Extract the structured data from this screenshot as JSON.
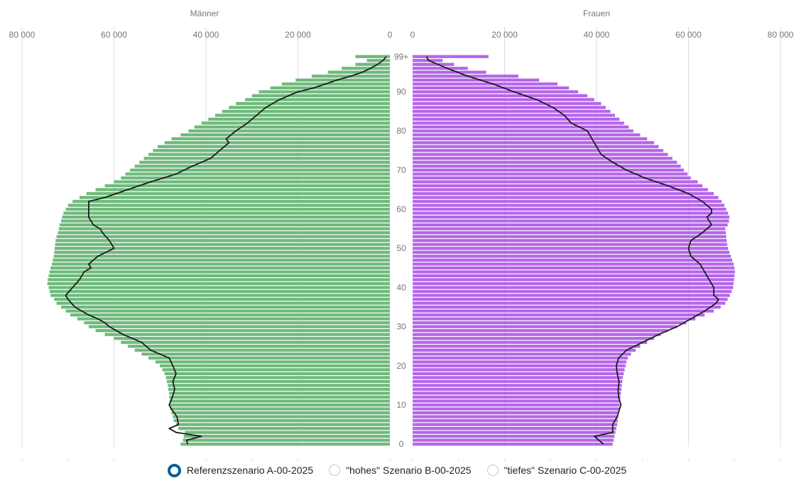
{
  "chart_data": {
    "type": "bar",
    "subtype": "population-pyramid",
    "panels": {
      "left": {
        "title": "Männer",
        "color": "#6fba7c"
      },
      "right": {
        "title": "Frauen",
        "color": "#b566ea"
      }
    },
    "x_ticks": [
      0,
      20000,
      40000,
      60000,
      80000
    ],
    "x_tick_labels": [
      "0",
      "20 000",
      "40 000",
      "60 000",
      "80 000"
    ],
    "x_range": [
      0,
      80000
    ],
    "y_ticks": [
      0,
      10,
      20,
      30,
      40,
      50,
      60,
      70,
      80,
      90
    ],
    "y_top_label": "99+",
    "y_range": [
      0,
      99
    ],
    "grid": true,
    "ages_note": "ages 0..99, 99 = 99+",
    "series": [
      {
        "name": "Männer",
        "values": [
          45500,
          45000,
          44800,
          44600,
          46000,
          46500,
          47000,
          47200,
          47500,
          47800,
          47800,
          47900,
          48000,
          48000,
          48200,
          48300,
          48500,
          48700,
          49000,
          49500,
          50000,
          51000,
          52500,
          54000,
          55500,
          57000,
          58500,
          60000,
          62000,
          64000,
          65500,
          66500,
          68000,
          69500,
          70500,
          71500,
          72500,
          73000,
          73800,
          74000,
          74200,
          74500,
          74400,
          74200,
          74000,
          73800,
          73500,
          73300,
          73100,
          73000,
          72900,
          72800,
          72700,
          72500,
          72200,
          72000,
          71800,
          71500,
          71300,
          71000,
          70500,
          70000,
          69000,
          67500,
          66000,
          64000,
          62000,
          60000,
          58500,
          57500,
          56500,
          55500,
          54500,
          53500,
          52500,
          51500,
          50500,
          49000,
          47500,
          45500,
          43800,
          42500,
          41000,
          39500,
          38000,
          36500,
          35000,
          33500,
          31500,
          30000,
          28500,
          26000,
          23500,
          20500,
          17000,
          13500,
          10500,
          7500,
          5000,
          7500
        ]
      },
      {
        "name": "Frauen",
        "values": [
          43500,
          43700,
          43900,
          44100,
          44300,
          44500,
          44600,
          44700,
          44800,
          44900,
          45000,
          45100,
          45200,
          45300,
          45400,
          45500,
          45600,
          45700,
          45900,
          46100,
          46300,
          46500,
          46800,
          47500,
          48500,
          49500,
          51000,
          52500,
          54000,
          55500,
          57500,
          59500,
          61500,
          63500,
          65500,
          67000,
          68000,
          68500,
          69000,
          69400,
          69700,
          69800,
          69900,
          70000,
          70100,
          70000,
          69800,
          69500,
          69200,
          68900,
          68600,
          68400,
          68300,
          68200,
          68100,
          68000,
          68500,
          68800,
          68900,
          68600,
          68200,
          67800,
          67200,
          66500,
          65500,
          64200,
          63000,
          62000,
          60500,
          59800,
          59000,
          58300,
          57500,
          56500,
          55500,
          54500,
          53500,
          52500,
          51000,
          49500,
          48000,
          47000,
          46000,
          45000,
          44000,
          43000,
          42000,
          41000,
          39500,
          38000,
          36000,
          34000,
          31500,
          27500,
          23000,
          16000,
          12000,
          9000,
          6500,
          16500
        ]
      },
      {
        "name": "Männer (Linie)",
        "points": [
          [
            0,
            44000
          ],
          [
            1,
            44200
          ],
          [
            2,
            41000
          ],
          [
            3,
            46500
          ],
          [
            4,
            48000
          ],
          [
            5,
            46000
          ],
          [
            7,
            46300
          ],
          [
            9,
            47500
          ],
          [
            10,
            48000
          ],
          [
            12,
            47300
          ],
          [
            14,
            46800
          ],
          [
            16,
            47200
          ],
          [
            18,
            46500
          ],
          [
            20,
            47200
          ],
          [
            22,
            48000
          ],
          [
            24,
            52000
          ],
          [
            26,
            54000
          ],
          [
            28,
            58000
          ],
          [
            30,
            61000
          ],
          [
            31,
            62000
          ],
          [
            32,
            63500
          ],
          [
            33,
            65500
          ],
          [
            34,
            67000
          ],
          [
            35,
            68500
          ],
          [
            37,
            70000
          ],
          [
            38,
            70500
          ],
          [
            40,
            69000
          ],
          [
            42,
            67500
          ],
          [
            44,
            66500
          ],
          [
            45,
            65000
          ],
          [
            46,
            65500
          ],
          [
            48,
            63500
          ],
          [
            50,
            60000
          ],
          [
            52,
            61000
          ],
          [
            54,
            62500
          ],
          [
            55,
            63000
          ],
          [
            56,
            64500
          ],
          [
            58,
            65500
          ],
          [
            60,
            65500
          ],
          [
            62,
            65500
          ],
          [
            63,
            62000
          ],
          [
            65,
            57000
          ],
          [
            67,
            52000
          ],
          [
            69,
            46500
          ],
          [
            71,
            43000
          ],
          [
            73,
            39000
          ],
          [
            75,
            37000
          ],
          [
            77,
            35000
          ],
          [
            78,
            35600
          ],
          [
            80,
            33500
          ],
          [
            82,
            31000
          ],
          [
            84,
            29000
          ],
          [
            86,
            27000
          ],
          [
            88,
            24000
          ],
          [
            90,
            20000
          ],
          [
            91,
            16500
          ],
          [
            92,
            14000
          ],
          [
            93,
            11500
          ],
          [
            94,
            8500
          ],
          [
            95,
            6000
          ],
          [
            96,
            4200
          ],
          [
            97,
            2700
          ],
          [
            98,
            1500
          ],
          [
            99,
            800
          ]
        ]
      },
      {
        "name": "Frauen (Linie)",
        "points": [
          [
            0,
            41500
          ],
          [
            2,
            39500
          ],
          [
            3,
            43500
          ],
          [
            5,
            43500
          ],
          [
            7,
            44500
          ],
          [
            9,
            45000
          ],
          [
            10,
            45300
          ],
          [
            12,
            44800
          ],
          [
            14,
            44700
          ],
          [
            16,
            44900
          ],
          [
            18,
            44500
          ],
          [
            20,
            44300
          ],
          [
            22,
            44800
          ],
          [
            24,
            46500
          ],
          [
            26,
            50000
          ],
          [
            28,
            53500
          ],
          [
            30,
            57500
          ],
          [
            32,
            60500
          ],
          [
            34,
            63500
          ],
          [
            36,
            66000
          ],
          [
            37,
            66500
          ],
          [
            38,
            65500
          ],
          [
            40,
            65500
          ],
          [
            42,
            64500
          ],
          [
            44,
            63500
          ],
          [
            46,
            62500
          ],
          [
            48,
            60500
          ],
          [
            50,
            60000
          ],
          [
            52,
            60500
          ],
          [
            54,
            63000
          ],
          [
            56,
            65000
          ],
          [
            58,
            64000
          ],
          [
            59,
            65000
          ],
          [
            60,
            65000
          ],
          [
            62,
            63000
          ],
          [
            64,
            60000
          ],
          [
            66,
            55500
          ],
          [
            68,
            50500
          ],
          [
            70,
            46500
          ],
          [
            72,
            43500
          ],
          [
            74,
            41000
          ],
          [
            76,
            40000
          ],
          [
            78,
            39000
          ],
          [
            80,
            38000
          ],
          [
            82,
            34500
          ],
          [
            84,
            33000
          ],
          [
            86,
            30500
          ],
          [
            88,
            27000
          ],
          [
            90,
            22000
          ],
          [
            92,
            17500
          ],
          [
            94,
            12000
          ],
          [
            96,
            7500
          ],
          [
            98,
            3500
          ],
          [
            99,
            3000
          ]
        ]
      }
    ]
  },
  "legend": {
    "options": [
      {
        "label": "Referenzszenario A-00-2025",
        "selected": true
      },
      {
        "label": "\"hohes\" Szenario B-00-2025",
        "selected": false
      },
      {
        "label": "\"tiefes\" Szenario C-00-2025",
        "selected": false
      }
    ]
  }
}
